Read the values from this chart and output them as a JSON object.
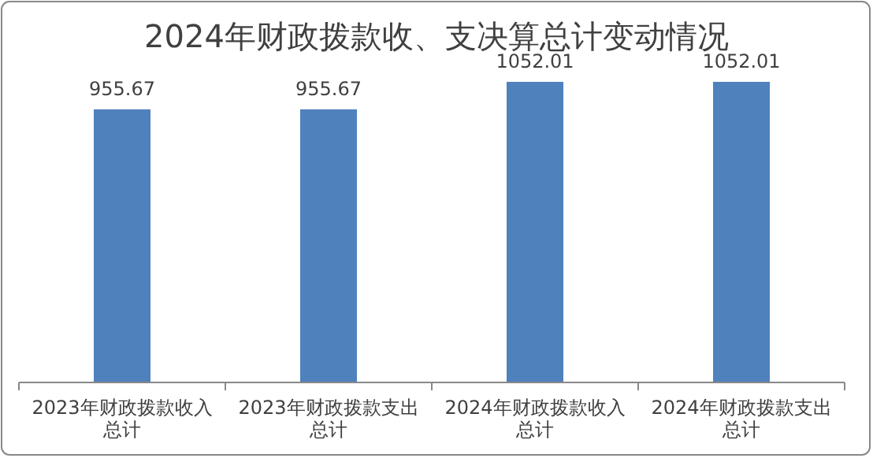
{
  "chart_data": {
    "type": "bar",
    "title": "2024年财政拨款收、支决算总计变动情况",
    "categories": [
      "2023年财政拨款收入总计",
      "2023年财政拨款支出总计",
      "2024年财政拨款收入总计",
      "2024年财政拨款支出总计"
    ],
    "values": [
      955.67,
      955.67,
      1052.01,
      1052.01
    ],
    "color": "#4f81bd",
    "data_labels": true,
    "tick_labels": "x"
  }
}
